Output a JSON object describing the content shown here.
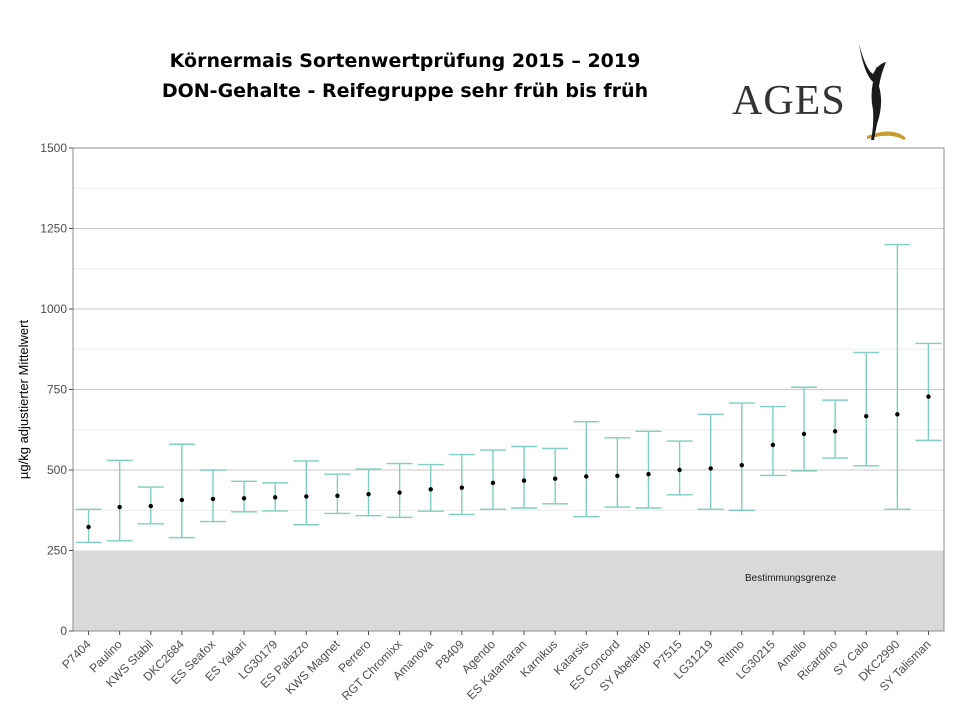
{
  "header": {
    "title_line1": "Körnermais Sortenwertprüfung 2015 – 2019",
    "title_line2": "DON-Gehalte - Reifegruppe sehr früh bis früh",
    "logo_text": "AGES"
  },
  "colors": {
    "errorbar": "#7ecfbf",
    "point": "#000000",
    "shade": "#d9d9d9",
    "grid": "#c8c8c8"
  },
  "chart_data": {
    "type": "errorbar",
    "ylabel": "µg/kg adjustierter Mittelwert",
    "ylim": [
      0,
      1500
    ],
    "yticks": [
      0,
      250,
      500,
      750,
      1000,
      1250,
      1500
    ],
    "grid": true,
    "annotation": "Bestimmungsgrenze",
    "shaded_below": 250,
    "categories": [
      "P7404",
      "Paulino",
      "KWS Stabil",
      "DKC2684",
      "ES Seafox",
      "ES Yakari",
      "LG30179",
      "ES Palazzo",
      "KWS Magnet",
      "Perrero",
      "RGT Chromixx",
      "Amanova",
      "P8409",
      "Agendo",
      "ES Katamaran",
      "Karnikus",
      "Katarsis",
      "ES Concord",
      "SY Abelardo",
      "P7515",
      "LG31219",
      "Ritmo",
      "LG30215",
      "Amello",
      "Ricardino",
      "SY Calo",
      "DKC2990",
      "SY Talisman"
    ],
    "mean": [
      323,
      385,
      388,
      407,
      410,
      412,
      415,
      418,
      420,
      425,
      430,
      440,
      445,
      460,
      467,
      473,
      480,
      482,
      487,
      500,
      505,
      515,
      578,
      612,
      620,
      667,
      673,
      728
    ],
    "lower": [
      275,
      280,
      333,
      290,
      340,
      370,
      373,
      330,
      365,
      358,
      353,
      372,
      362,
      378,
      382,
      395,
      355,
      385,
      382,
      423,
      378,
      375,
      483,
      497,
      537,
      513,
      378,
      592
    ],
    "upper": [
      378,
      530,
      447,
      580,
      500,
      465,
      460,
      528,
      487,
      503,
      520,
      517,
      548,
      562,
      573,
      567,
      650,
      600,
      620,
      590,
      673,
      708,
      697,
      757,
      717,
      865,
      1200,
      893
    ]
  }
}
